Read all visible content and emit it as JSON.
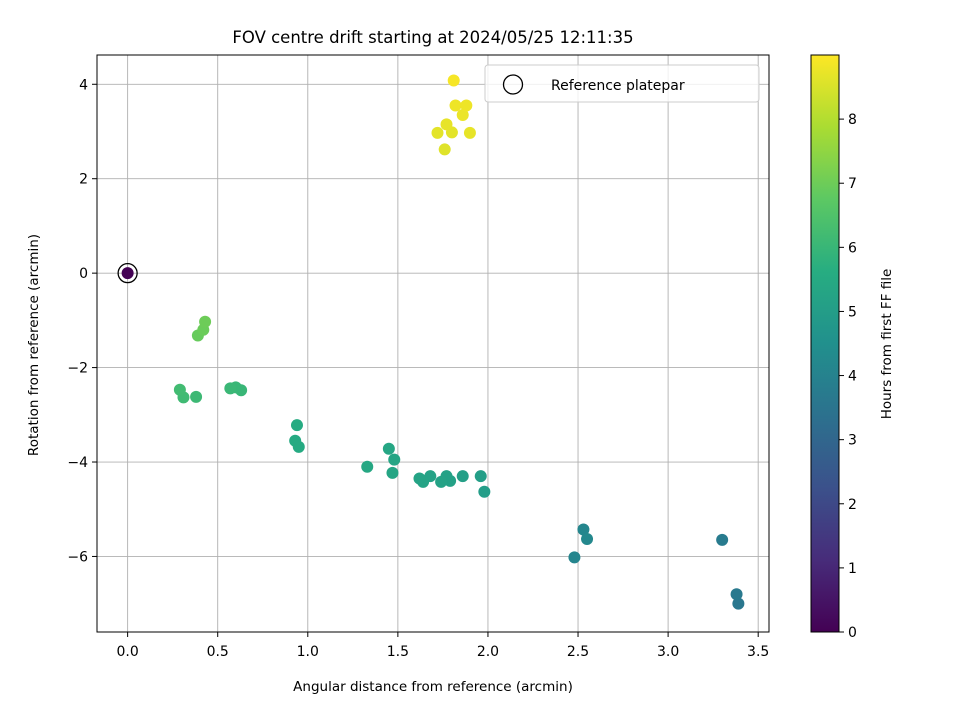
{
  "chart_data": {
    "type": "scatter",
    "title": "FOV centre drift starting at 2024/05/25 12:11:35",
    "xlabel": "Angular distance from reference (arcmin)",
    "ylabel": "Rotation from reference (arcmin)",
    "xlim": [
      -0.17,
      3.56
    ],
    "ylim": [
      -7.6,
      4.62
    ],
    "xticks": [
      0.0,
      0.5,
      1.0,
      1.5,
      2.0,
      2.5,
      3.0,
      3.5
    ],
    "xtick_labels": [
      "0.0",
      "0.5",
      "1.0",
      "1.5",
      "2.0",
      "2.5",
      "3.0",
      "3.5"
    ],
    "yticks": [
      -6,
      -4,
      -2,
      0,
      2,
      4
    ],
    "ytick_labels": [
      "−6",
      "−4",
      "−2",
      "0",
      "2",
      "4"
    ],
    "grid": true,
    "legend": {
      "placement": "upper right",
      "entries": [
        "Reference platepar"
      ]
    },
    "colorbar": {
      "label": "Hours from first FF file",
      "colormap": "viridis",
      "range": [
        0,
        9.0
      ],
      "ticks": [
        0,
        1,
        2,
        3,
        4,
        5,
        6,
        7,
        8
      ],
      "tick_labels": [
        "0",
        "1",
        "2",
        "3",
        "4",
        "5",
        "6",
        "7",
        "8"
      ]
    },
    "reference": {
      "name": "Reference platepar",
      "x": 0.0,
      "y": 0.0,
      "c": 0.0
    },
    "series": [
      {
        "points": [
          {
            "x": 3.39,
            "y": -7.0,
            "c": 3.6
          },
          {
            "x": 3.38,
            "y": -6.8,
            "c": 3.65
          },
          {
            "x": 3.3,
            "y": -5.65,
            "c": 3.75
          },
          {
            "x": 2.48,
            "y": -6.02,
            "c": 4.1
          },
          {
            "x": 2.53,
            "y": -5.43,
            "c": 4.15
          },
          {
            "x": 2.55,
            "y": -5.63,
            "c": 4.2
          },
          {
            "x": 1.98,
            "y": -4.63,
            "c": 5.0
          },
          {
            "x": 1.96,
            "y": -4.3,
            "c": 5.05
          },
          {
            "x": 1.86,
            "y": -4.3,
            "c": 5.1
          },
          {
            "x": 1.79,
            "y": -4.4,
            "c": 5.15
          },
          {
            "x": 1.77,
            "y": -4.3,
            "c": 5.15
          },
          {
            "x": 1.74,
            "y": -4.42,
            "c": 5.2
          },
          {
            "x": 1.68,
            "y": -4.3,
            "c": 5.2
          },
          {
            "x": 1.64,
            "y": -4.42,
            "c": 5.25
          },
          {
            "x": 1.62,
            "y": -4.35,
            "c": 5.25
          },
          {
            "x": 1.47,
            "y": -4.23,
            "c": 5.3
          },
          {
            "x": 1.48,
            "y": -3.95,
            "c": 5.3
          },
          {
            "x": 1.45,
            "y": -3.72,
            "c": 5.35
          },
          {
            "x": 1.33,
            "y": -4.1,
            "c": 5.4
          },
          {
            "x": 0.95,
            "y": -3.68,
            "c": 5.5
          },
          {
            "x": 0.93,
            "y": -3.55,
            "c": 5.5
          },
          {
            "x": 0.94,
            "y": -3.22,
            "c": 5.55
          },
          {
            "x": 0.63,
            "y": -2.48,
            "c": 6.0
          },
          {
            "x": 0.6,
            "y": -2.42,
            "c": 6.0
          },
          {
            "x": 0.57,
            "y": -2.44,
            "c": 6.05
          },
          {
            "x": 0.38,
            "y": -2.62,
            "c": 6.1
          },
          {
            "x": 0.31,
            "y": -2.63,
            "c": 6.15
          },
          {
            "x": 0.29,
            "y": -2.47,
            "c": 6.2
          },
          {
            "x": 0.39,
            "y": -1.32,
            "c": 6.9
          },
          {
            "x": 0.42,
            "y": -1.2,
            "c": 6.95
          },
          {
            "x": 0.43,
            "y": -1.03,
            "c": 7.0
          },
          {
            "x": 1.76,
            "y": 2.62,
            "c": 8.6
          },
          {
            "x": 1.72,
            "y": 2.97,
            "c": 8.65
          },
          {
            "x": 1.8,
            "y": 2.98,
            "c": 8.65
          },
          {
            "x": 1.77,
            "y": 3.15,
            "c": 8.7
          },
          {
            "x": 1.9,
            "y": 2.97,
            "c": 8.7
          },
          {
            "x": 1.86,
            "y": 3.35,
            "c": 8.75
          },
          {
            "x": 1.82,
            "y": 3.55,
            "c": 8.8
          },
          {
            "x": 1.88,
            "y": 3.55,
            "c": 8.8
          },
          {
            "x": 1.81,
            "y": 4.08,
            "c": 8.9
          }
        ]
      }
    ]
  }
}
